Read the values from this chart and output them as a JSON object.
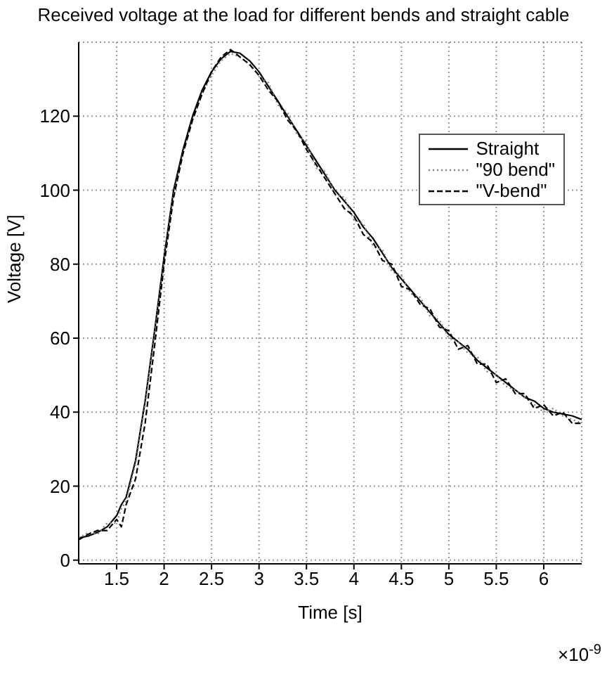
{
  "chart_data": {
    "type": "line",
    "title": "Received voltage at the load for different bends and straight cable",
    "xlabel": "Time [s]",
    "ylabel": "Voltage [V]",
    "annotations": [
      "×10$^{-9}$"
    ],
    "x": [
      1.1,
      1.2,
      1.3,
      1.4,
      1.5,
      1.55,
      1.6,
      1.7,
      1.8,
      1.9,
      2.0,
      2.1,
      2.2,
      2.3,
      2.4,
      2.5,
      2.6,
      2.7,
      2.8,
      2.9,
      3.0,
      3.1,
      3.2,
      3.3,
      3.4,
      3.5,
      3.6,
      3.7,
      3.8,
      3.9,
      4.0,
      4.1,
      4.2,
      4.3,
      4.4,
      4.5,
      4.6,
      4.7,
      4.8,
      4.9,
      5.0,
      5.1,
      5.2,
      5.3,
      5.4,
      5.5,
      5.6,
      5.7,
      5.8,
      5.9,
      6.0,
      6.1,
      6.2,
      6.3,
      6.4
    ],
    "series": [
      {
        "name": "Straight",
        "color": "#000000",
        "line_style": "solid",
        "values": [
          6,
          6.5,
          7.5,
          9,
          12,
          15,
          17,
          27,
          43,
          62,
          82,
          100,
          111,
          120,
          127,
          132,
          135.5,
          137.5,
          137,
          135,
          132,
          128,
          124,
          120,
          116,
          112,
          108,
          104,
          100,
          97,
          94,
          90,
          87,
          83,
          79,
          76,
          73,
          70,
          67,
          64,
          61,
          59,
          57,
          54,
          52,
          50,
          48,
          46,
          44,
          43,
          41,
          40,
          39.5,
          39,
          38
        ]
      },
      {
        "name": "\"90 bend\"",
        "color": "#808080",
        "line_style": "dotted",
        "values": [
          6,
          7.5,
          7,
          10,
          10,
          14,
          16,
          26,
          42,
          61,
          81,
          99,
          110,
          119,
          126,
          131,
          135,
          137,
          136,
          134,
          131,
          129,
          123,
          121,
          115,
          113,
          106,
          105,
          99,
          98,
          92,
          91,
          85,
          84,
          78,
          77,
          72,
          71,
          66,
          65,
          60,
          59,
          56,
          55,
          51,
          50,
          47,
          46,
          44,
          42,
          40,
          41,
          39,
          38,
          37
        ]
      },
      {
        "name": "\"V-bend\"",
        "color": "#000000",
        "line_style": "dashed",
        "values": [
          5.5,
          7,
          8,
          8,
          11,
          9,
          15,
          22,
          37,
          58,
          80,
          98,
          110,
          119,
          126,
          132,
          136,
          138,
          136,
          134,
          131,
          127,
          124,
          119,
          116,
          111,
          107,
          103,
          99,
          95,
          93,
          88,
          86,
          81,
          80,
          74,
          73,
          69,
          68,
          63,
          62,
          57,
          58,
          53,
          53,
          48,
          49,
          45,
          45,
          41,
          42,
          39,
          40,
          37,
          37
        ]
      }
    ],
    "xlim": [
      1.1,
      6.4
    ],
    "xticks": [
      1.5,
      2,
      2.5,
      3,
      3.5,
      4,
      4.5,
      5,
      5.5,
      6
    ],
    "ylim": [
      -1,
      140
    ],
    "yticks": [
      0,
      20,
      40,
      60,
      80,
      100,
      120
    ],
    "grid": true,
    "legend": "top right",
    "marker": "none"
  }
}
